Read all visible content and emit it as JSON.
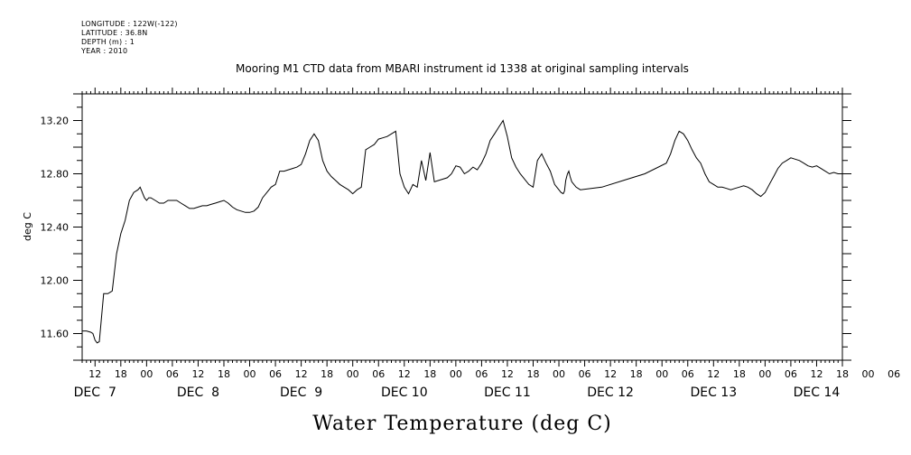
{
  "header": {
    "longitude": "LONGITUDE : 122W(-122)",
    "latitude": "LATITUDE : 36.8N",
    "depth": "DEPTH (m) : 1",
    "year": "YEAR : 2010"
  },
  "chart_data": {
    "type": "line",
    "title": "Mooring M1 CTD data from MBARI instrument id 1338 at original sampling intervals",
    "xlabel": "Water Temperature (deg C)",
    "ylabel": "deg C",
    "ylim": [
      11.4,
      13.4
    ],
    "yticks": [
      11.6,
      12.0,
      12.4,
      12.8,
      13.2
    ],
    "ytick_labels": [
      "11.60",
      "12.00",
      "12.40",
      "12.80",
      "13.20"
    ],
    "xlim_hours": [
      9,
      186
    ],
    "x_hour_labels": [
      "12",
      "18",
      "00",
      "06",
      "12",
      "18",
      "00",
      "06",
      "12",
      "18",
      "00",
      "06",
      "12",
      "18",
      "00",
      "06",
      "12",
      "18",
      "00",
      "06",
      "12",
      "18",
      "00",
      "06",
      "12",
      "18",
      "00",
      "06",
      "12",
      "18",
      "00",
      "06"
    ],
    "x_day_labels": [
      "DEC  7",
      "DEC  8",
      "DEC  9",
      "DEC 10",
      "DEC 11",
      "DEC 12",
      "DEC 13",
      "DEC 14"
    ],
    "series": [
      {
        "x": [
          9,
          10,
          11,
          11.5,
          12,
          12.5,
          13,
          14,
          15,
          16,
          17,
          18,
          19,
          20,
          21,
          22,
          22.5,
          23,
          23.5,
          24,
          24.5,
          25,
          26,
          27,
          28,
          29,
          30,
          31,
          32,
          33,
          34,
          35,
          36,
          37,
          38,
          39,
          40,
          41,
          42,
          43,
          44,
          45,
          46,
          47,
          48,
          49,
          50,
          51,
          52,
          53,
          54,
          55,
          56,
          57,
          58,
          59,
          60,
          61,
          62,
          63,
          64,
          65,
          66,
          67,
          68,
          69,
          70,
          71,
          72,
          73,
          74,
          75,
          76,
          77,
          78,
          79,
          80,
          81,
          82,
          83,
          84,
          85,
          86,
          87,
          88,
          89,
          90,
          91,
          92,
          93,
          94,
          95,
          96,
          97,
          98,
          99,
          100,
          101,
          102,
          103,
          104,
          105,
          106,
          107,
          108,
          109,
          110,
          111,
          112,
          113,
          114,
          115,
          116,
          117,
          118,
          119,
          119.5,
          120,
          120.5,
          121,
          121.3,
          121.6,
          122,
          122.3,
          122.6,
          123,
          124,
          125,
          130,
          135,
          140,
          145,
          146,
          147,
          148,
          149,
          150,
          151,
          152,
          153,
          154,
          155,
          156,
          157,
          158,
          159,
          160,
          161,
          162,
          163,
          164,
          165,
          166,
          167,
          168,
          169,
          170,
          171,
          172,
          173,
          174,
          175,
          176,
          177,
          178,
          179,
          180,
          181,
          182,
          183,
          184,
          185,
          186
        ],
        "y": [
          11.62,
          11.62,
          11.61,
          11.6,
          11.55,
          11.53,
          11.54,
          11.9,
          11.9,
          11.92,
          12.2,
          12.35,
          12.45,
          12.6,
          12.66,
          12.68,
          12.7,
          12.66,
          12.62,
          12.6,
          12.62,
          12.62,
          12.6,
          12.58,
          12.58,
          12.6,
          12.6,
          12.6,
          12.58,
          12.56,
          12.54,
          12.54,
          12.55,
          12.56,
          12.56,
          12.57,
          12.58,
          12.59,
          12.6,
          12.58,
          12.55,
          12.53,
          12.52,
          12.51,
          12.51,
          12.52,
          12.55,
          12.62,
          12.66,
          12.7,
          12.72,
          12.82,
          12.82,
          12.83,
          12.84,
          12.85,
          12.87,
          12.95,
          13.05,
          13.1,
          13.05,
          12.9,
          12.82,
          12.78,
          12.75,
          12.72,
          12.7,
          12.68,
          12.65,
          12.68,
          12.7,
          12.98,
          13.0,
          13.02,
          13.06,
          13.07,
          13.08,
          13.1,
          13.12,
          12.8,
          12.7,
          12.65,
          12.72,
          12.7,
          12.9,
          12.75,
          12.96,
          12.74,
          12.75,
          12.76,
          12.77,
          12.8,
          12.86,
          12.85,
          12.8,
          12.82,
          12.85,
          12.83,
          12.88,
          12.95,
          13.05,
          13.1,
          13.15,
          13.2,
          13.08,
          12.92,
          12.85,
          12.8,
          12.76,
          12.72,
          12.7,
          12.9,
          12.95,
          12.88,
          12.82,
          12.72,
          12.7,
          12.68,
          12.66,
          12.65,
          12.67,
          12.75,
          12.8,
          12.82,
          12.78,
          12.74,
          12.7,
          12.68,
          12.7,
          12.75,
          12.8,
          12.88,
          12.95,
          13.05,
          13.12,
          13.1,
          13.05,
          12.98,
          12.92,
          12.88,
          12.8,
          12.74,
          12.72,
          12.7,
          12.7,
          12.69,
          12.68,
          12.69,
          12.7,
          12.71,
          12.7,
          12.68,
          12.65,
          12.63,
          12.66,
          12.72,
          12.78,
          12.84,
          12.88,
          12.9,
          12.92,
          12.91,
          12.9,
          12.88,
          12.86,
          12.85,
          12.86,
          12.84,
          12.82,
          12.8,
          12.81,
          12.8,
          12.8
        ]
      }
    ]
  }
}
